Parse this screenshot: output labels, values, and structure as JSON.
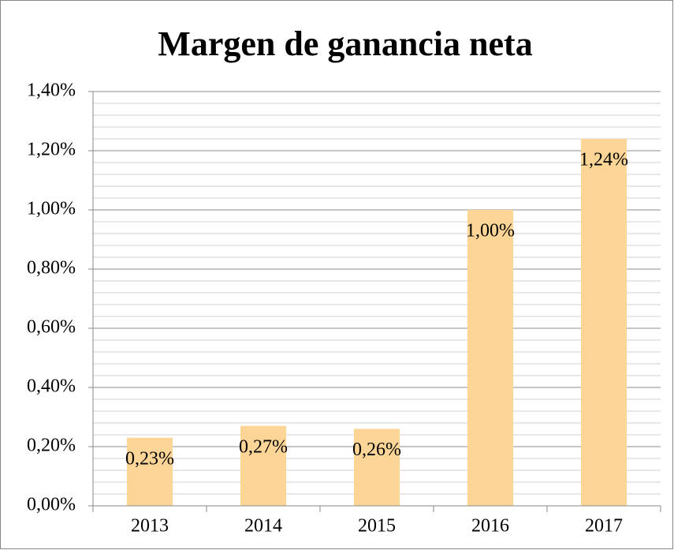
{
  "chart_data": {
    "type": "bar",
    "title": "Margen de ganancia neta",
    "categories": [
      "2013",
      "2014",
      "2015",
      "2016",
      "2017"
    ],
    "values": [
      0.23,
      0.27,
      0.26,
      1.0,
      1.24
    ],
    "value_labels": [
      "0,23%",
      "0,27%",
      "0,26%",
      "1,00%",
      "1,24%"
    ],
    "color": "#fdd697",
    "ylim": [
      0,
      1.4
    ],
    "yticks": [
      {
        "value": 0,
        "label": "0,00%"
      },
      {
        "value": 0.2,
        "label": "0,20%"
      },
      {
        "value": 0.4,
        "label": "0,40%"
      },
      {
        "value": 0.6,
        "label": "0,60%"
      },
      {
        "value": 0.8,
        "label": "0,80%"
      },
      {
        "value": 1.0,
        "label": "1,00%"
      },
      {
        "value": 1.2,
        "label": "1,20%"
      },
      {
        "value": 1.4,
        "label": "1,40%"
      }
    ],
    "minor_yticks": [
      0.04,
      0.08,
      0.12,
      0.16,
      0.24,
      0.28,
      0.32,
      0.36,
      0.44,
      0.48,
      0.52,
      0.56,
      0.64,
      0.68,
      0.72,
      0.76,
      0.84,
      0.88,
      0.92,
      0.96,
      1.04,
      1.08,
      1.12,
      1.16,
      1.24,
      1.28,
      1.32,
      1.36
    ],
    "grid": true
  }
}
